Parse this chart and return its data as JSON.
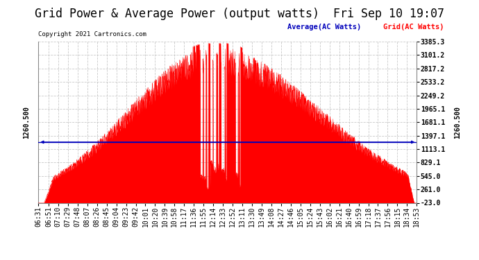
{
  "title": "Grid Power & Average Power (output watts)  Fri Sep 10 19:07",
  "copyright": "Copyright 2021 Cartronics.com",
  "average_label": "Average(AC Watts)",
  "grid_label": "Grid(AC Watts)",
  "average_value": 1260.5,
  "ylim": [
    -23.0,
    3385.3
  ],
  "yticks": [
    -23.0,
    261.0,
    545.0,
    829.1,
    1113.1,
    1397.1,
    1681.1,
    1965.1,
    2249.2,
    2533.2,
    2817.2,
    3101.2,
    3385.3
  ],
  "xtick_labels": [
    "06:31",
    "06:51",
    "07:10",
    "07:29",
    "07:48",
    "08:07",
    "08:26",
    "08:45",
    "09:04",
    "09:23",
    "09:42",
    "10:01",
    "10:20",
    "10:39",
    "10:58",
    "11:17",
    "11:36",
    "11:55",
    "12:14",
    "12:33",
    "12:52",
    "13:11",
    "13:30",
    "13:49",
    "14:08",
    "14:27",
    "14:46",
    "15:05",
    "15:24",
    "15:43",
    "16:02",
    "16:21",
    "16:40",
    "16:59",
    "17:18",
    "17:37",
    "17:56",
    "18:15",
    "18:34",
    "18:53"
  ],
  "fill_color": "#ff0000",
  "average_line_color": "#0000bb",
  "background_color": "#ffffff",
  "grid_color": "#bbbbbb",
  "title_fontsize": 12,
  "tick_fontsize": 7,
  "label_fontsize": 8
}
